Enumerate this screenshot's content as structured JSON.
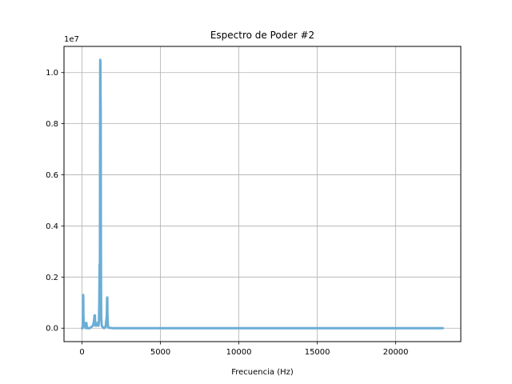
{
  "chart_data": {
    "type": "line",
    "title": "Espectro de Poder #2",
    "xlabel": "Frecuencia (Hz)",
    "ylabel": "",
    "y_offset_label": "1e7",
    "y_multiplier": 10000000,
    "xlim": [
      -1150,
      24150
    ],
    "ylim": [
      -0.0525,
      1.1025
    ],
    "xticks": [
      0,
      5000,
      10000,
      15000,
      20000
    ],
    "xtick_labels": [
      "0",
      "5000",
      "10000",
      "15000",
      "20000"
    ],
    "yticks": [
      0.0,
      0.2,
      0.4,
      0.6,
      0.8,
      1.0
    ],
    "ytick_labels": [
      "0.0",
      "0.2",
      "0.4",
      "0.6",
      "0.8",
      "1.0"
    ],
    "grid": true,
    "series": [
      {
        "color": "#6baed6",
        "x": [
          0,
          40,
          60,
          70,
          80,
          90,
          110,
          150,
          200,
          240,
          260,
          280,
          300,
          340,
          400,
          500,
          600,
          700,
          770,
          800,
          820,
          840,
          860,
          900,
          960,
          1000,
          1050,
          1080,
          1100,
          1120,
          1140,
          1150,
          1160,
          1170,
          1180,
          1190,
          1200,
          1210,
          1220,
          1240,
          1260,
          1300,
          1400,
          1500,
          1580,
          1600,
          1610,
          1620,
          1640,
          1660,
          1700,
          1800,
          2000,
          3000,
          5000,
          10000,
          15000,
          20000,
          23000
        ],
        "y": [
          0.0,
          0.0,
          0.04,
          0.13,
          0.12,
          0.05,
          0.02,
          0.01,
          0.005,
          0.0,
          0.02,
          0.02,
          0.01,
          0.0,
          0.0,
          0.0,
          0.005,
          0.01,
          0.03,
          0.05,
          0.05,
          0.02,
          0.01,
          0.01,
          0.02,
          0.01,
          0.01,
          0.03,
          0.1,
          0.25,
          0.15,
          0.7,
          1.05,
          1.04,
          0.9,
          0.85,
          0.4,
          0.15,
          0.05,
          0.02,
          0.01,
          0.005,
          0.0,
          0.005,
          0.05,
          0.12,
          0.12,
          0.06,
          0.02,
          0.005,
          0.002,
          0.001,
          0.0,
          0.0,
          0.0,
          0.0,
          0.0,
          0.0,
          0.0
        ]
      }
    ]
  }
}
